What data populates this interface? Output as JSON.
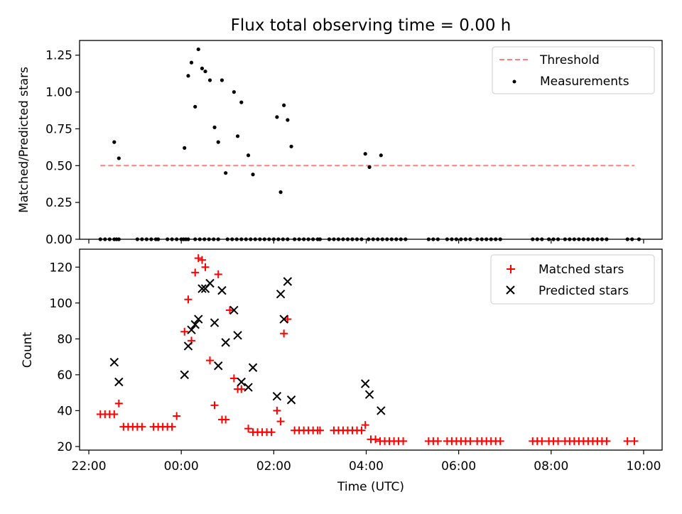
{
  "chart_data": [
    {
      "type": "scatter",
      "title": "Flux total observing time = 0.00 h",
      "xlabel": "",
      "ylabel": "Matched/Predicted stars",
      "xlim": [
        -2.2,
        10.4
      ],
      "ylim": [
        0.0,
        1.35
      ],
      "yticks": [
        "0.00",
        "0.25",
        "0.50",
        "0.75",
        "1.00",
        "1.25"
      ],
      "ytick_values": [
        0,
        0.25,
        0.5,
        0.75,
        1.0,
        1.25
      ],
      "threshold": {
        "label": "Threshold",
        "value": 0.5,
        "x_start": -1.75,
        "x_end": 9.8,
        "color": "#ff7f7f"
      },
      "legend": [
        "Threshold",
        "Measurements"
      ],
      "legend_position": "upper right",
      "series": [
        {
          "name": "Measurements",
          "color": "#000000",
          "x": [
            -1.75,
            -1.65,
            -1.55,
            -1.45,
            -1.4,
            -1.35,
            -0.95,
            -0.85,
            -0.75,
            -0.65,
            -0.55,
            -0.5,
            -0.3,
            -0.2,
            -0.1,
            0.0,
            0.05,
            0.1,
            0.15,
            0.3,
            0.4,
            0.5,
            0.6,
            0.7,
            0.8,
            1.0,
            1.1,
            1.2,
            1.3,
            1.4,
            1.5,
            1.6,
            1.7,
            1.8,
            1.9,
            2.0,
            2.1,
            2.2,
            2.3,
            2.45,
            2.55,
            2.65,
            2.75,
            2.85,
            2.95,
            3.0,
            3.2,
            3.3,
            3.4,
            3.5,
            3.6,
            3.7,
            3.8,
            3.9,
            4.05,
            4.15,
            4.25,
            4.35,
            4.45,
            4.55,
            4.65,
            4.75,
            4.85,
            5.35,
            5.45,
            5.55,
            5.75,
            5.85,
            5.95,
            6.05,
            6.15,
            6.25,
            6.4,
            6.5,
            6.6,
            6.7,
            6.8,
            6.9,
            7.6,
            7.7,
            7.8,
            7.95,
            8.05,
            8.15,
            8.3,
            8.4,
            8.5,
            8.6,
            8.7,
            8.8,
            8.9,
            9.0,
            9.1,
            9.2,
            9.65,
            9.75,
            9.9,
            -1.45,
            -1.35,
            0.07,
            0.15,
            0.22,
            0.3,
            0.37,
            0.45,
            0.52,
            0.62,
            0.72,
            0.8,
            0.88,
            0.96,
            1.14,
            1.22,
            1.3,
            1.45,
            1.55,
            2.07,
            2.15,
            2.22,
            2.3,
            2.38,
            3.98,
            4.07,
            4.32
          ],
          "y": [
            0,
            0,
            0,
            0,
            0,
            0,
            0,
            0,
            0,
            0,
            0,
            0,
            0,
            0,
            0,
            0,
            0,
            0,
            0,
            0,
            0,
            0,
            0,
            0,
            0,
            0,
            0,
            0,
            0,
            0,
            0,
            0,
            0,
            0,
            0,
            0,
            0,
            0,
            0,
            0,
            0,
            0,
            0,
            0,
            0,
            0,
            0,
            0,
            0,
            0,
            0,
            0,
            0,
            0,
            0,
            0,
            0,
            0,
            0,
            0,
            0,
            0,
            0,
            0,
            0,
            0,
            0,
            0,
            0,
            0,
            0,
            0,
            0,
            0,
            0,
            0,
            0,
            0,
            0,
            0,
            0,
            0,
            0,
            0,
            0,
            0,
            0,
            0,
            0,
            0,
            0,
            0,
            0,
            0,
            0,
            0,
            0,
            0.66,
            0.55,
            0.62,
            1.11,
            1.2,
            0.9,
            1.29,
            1.16,
            1.14,
            1.08,
            0.76,
            0.66,
            1.08,
            0.45,
            1.0,
            0.7,
            0.93,
            0.57,
            0.44,
            0.83,
            0.32,
            0.91,
            0.81,
            0.63,
            0.58,
            0.49,
            0.57
          ]
        }
      ]
    },
    {
      "type": "scatter",
      "title": "",
      "xlabel": "Time (UTC)",
      "ylabel": "Count",
      "xlim": [
        -2.2,
        10.4
      ],
      "ylim": [
        18,
        130
      ],
      "yticks": [
        "20",
        "40",
        "60",
        "80",
        "100",
        "120"
      ],
      "ytick_values": [
        20,
        40,
        60,
        80,
        100,
        120
      ],
      "xticks": [
        "22:00",
        "00:00",
        "02:00",
        "04:00",
        "06:00",
        "08:00",
        "10:00"
      ],
      "xtick_values": [
        -2,
        0,
        2,
        4,
        6,
        8,
        10
      ],
      "legend": [
        "Matched stars",
        "Predicted stars"
      ],
      "legend_position": "upper right",
      "series": [
        {
          "name": "Matched stars",
          "color": "#ff0000",
          "marker": "+",
          "x": [
            -1.75,
            -1.65,
            -1.55,
            -1.45,
            -1.35,
            -1.25,
            -1.15,
            -1.05,
            -0.95,
            -0.85,
            -0.6,
            -0.5,
            -0.4,
            -0.3,
            -0.2,
            -0.1,
            0.07,
            0.15,
            0.22,
            0.3,
            0.37,
            0.45,
            0.52,
            0.62,
            0.72,
            0.8,
            0.88,
            0.96,
            1.05,
            1.14,
            1.22,
            1.3,
            1.45,
            1.55,
            1.65,
            1.75,
            1.85,
            1.95,
            2.07,
            2.15,
            2.22,
            2.3,
            2.45,
            2.55,
            2.65,
            2.75,
            2.85,
            2.95,
            3.0,
            3.3,
            3.4,
            3.5,
            3.6,
            3.7,
            3.8,
            3.9,
            3.98,
            4.1,
            4.2,
            4.3,
            4.4,
            4.5,
            4.6,
            4.7,
            4.8,
            5.35,
            5.45,
            5.55,
            5.75,
            5.85,
            5.95,
            6.05,
            6.15,
            6.25,
            6.4,
            6.5,
            6.6,
            6.7,
            6.8,
            6.9,
            7.6,
            7.7,
            7.8,
            7.95,
            8.05,
            8.15,
            8.3,
            8.4,
            8.5,
            8.6,
            8.7,
            8.8,
            8.9,
            9.0,
            9.1,
            9.2,
            9.65,
            9.8
          ],
          "y": [
            38,
            38,
            38,
            38,
            44,
            31,
            31,
            31,
            31,
            31,
            31,
            31,
            31,
            31,
            31,
            37,
            84,
            102,
            79,
            117,
            125,
            124,
            120,
            68,
            43,
            116,
            35,
            35,
            96,
            58,
            52,
            52,
            30,
            28,
            28,
            28,
            28,
            28,
            40,
            34,
            83,
            91,
            29,
            29,
            29,
            29,
            29,
            29,
            29,
            29,
            29,
            29,
            29,
            29,
            29,
            29,
            32,
            24,
            24,
            23,
            23,
            23,
            23,
            23,
            23,
            23,
            23,
            23,
            23,
            23,
            23,
            23,
            23,
            23,
            23,
            23,
            23,
            23,
            23,
            23,
            23,
            23,
            23,
            23,
            23,
            23,
            23,
            23,
            23,
            23,
            23,
            23,
            23,
            23,
            23,
            23,
            23,
            23
          ]
        },
        {
          "name": "Predicted stars",
          "color": "#000000",
          "marker": "x",
          "x": [
            -1.45,
            -1.35,
            0.07,
            0.15,
            0.22,
            0.3,
            0.37,
            0.45,
            0.52,
            0.62,
            0.72,
            0.8,
            0.88,
            0.96,
            1.14,
            1.22,
            1.3,
            1.45,
            1.55,
            2.07,
            2.15,
            2.22,
            2.3,
            2.38,
            3.98,
            4.07,
            4.32
          ],
          "y": [
            67,
            56,
            60,
            76,
            85,
            88,
            91,
            108,
            108,
            111,
            89,
            65,
            107,
            78,
            96,
            82,
            56,
            53,
            64,
            48,
            105,
            91,
            112,
            46,
            55,
            49,
            40
          ]
        }
      ]
    }
  ]
}
